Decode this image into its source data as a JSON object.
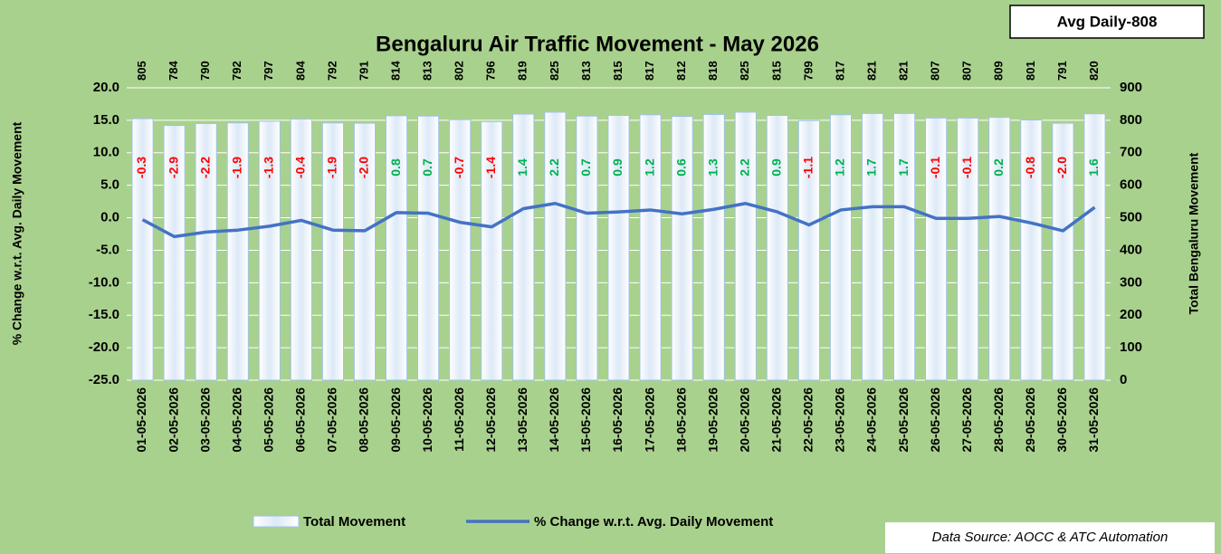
{
  "chart_data": {
    "type": "combo",
    "title": "Bengaluru Air Traffic Movement - May 2026",
    "annotation": "Avg Daily-808",
    "source": "Data Source: AOCC & ATC Automation",
    "ylabel": "% Change w.r.t. Avg. Daily Movement",
    "y2label": "Total Bengaluru Movement",
    "categories": [
      "01-05-2026",
      "02-05-2026",
      "03-05-2026",
      "04-05-2026",
      "05-05-2026",
      "06-05-2026",
      "07-05-2026",
      "08-05-2026",
      "09-05-2026",
      "10-05-2026",
      "11-05-2026",
      "12-05-2026",
      "13-05-2026",
      "14-05-2026",
      "15-05-2026",
      "16-05-2026",
      "17-05-2026",
      "18-05-2026",
      "19-05-2026",
      "20-05-2026",
      "21-05-2026",
      "22-05-2026",
      "23-05-2026",
      "24-05-2026",
      "25-05-2026",
      "26-05-2026",
      "27-05-2026",
      "28-05-2026",
      "29-05-2026",
      "30-05-2026",
      "31-05-2026"
    ],
    "series": [
      {
        "name": "Total Movement",
        "type": "bar",
        "axis": "y2",
        "color": "#9dc3e6",
        "values": [
          805,
          784,
          790,
          792,
          797,
          804,
          792,
          791,
          814,
          813,
          802,
          796,
          819,
          825,
          813,
          815,
          817,
          812,
          818,
          825,
          815,
          799,
          817,
          821,
          821,
          807,
          807,
          809,
          801,
          791,
          820
        ]
      },
      {
        "name": "% Change w.r.t. Avg. Daily Movement",
        "type": "line",
        "color": "#4472c4",
        "values": [
          -0.3,
          -2.9,
          -2.2,
          -1.9,
          -1.3,
          -0.4,
          -1.9,
          -2.0,
          0.8,
          0.7,
          -0.7,
          -1.4,
          1.4,
          2.2,
          0.7,
          0.9,
          1.2,
          0.6,
          1.3,
          2.2,
          0.9,
          -1.1,
          1.2,
          1.7,
          1.7,
          -0.1,
          -0.1,
          0.2,
          -0.8,
          -2.0,
          1.6
        ],
        "value_labels": [
          "-0.3",
          "-2.9",
          "-2.2",
          "-1.9",
          "-1.3",
          "-0.4",
          "-1.9",
          "-2.0",
          "0.8",
          "0.7",
          "-0.7",
          "-1.4",
          "1.4",
          "2.2",
          "0.7",
          "0.9",
          "1.2",
          "0.6",
          "1.3",
          "2.2",
          "0.9",
          "-1.1",
          "1.2",
          "1.7",
          "1.7",
          "-0.1",
          "-0.1",
          "0.2",
          "-0.8",
          "-2.0",
          "1.6"
        ],
        "label_colors": {
          "negative": "#ff0000",
          "positive": "#00b050"
        }
      }
    ],
    "ylim": [
      -25,
      20
    ],
    "yticks": [
      {
        "value": -25,
        "label": "-25.0"
      },
      {
        "value": -20,
        "label": "-20.0"
      },
      {
        "value": -15,
        "label": "-15.0"
      },
      {
        "value": -10,
        "label": "-10.0"
      },
      {
        "value": -5,
        "label": "-5.0"
      },
      {
        "value": 0,
        "label": "0.0"
      },
      {
        "value": 5,
        "label": "5.0"
      },
      {
        "value": 10,
        "label": "10.0"
      },
      {
        "value": 15,
        "label": "15.0"
      },
      {
        "value": 20,
        "label": "20.0"
      }
    ],
    "y2lim": [
      0,
      900
    ],
    "y2ticks": [
      0,
      100,
      200,
      300,
      400,
      500,
      600,
      700,
      800,
      900
    ],
    "grid": true
  }
}
